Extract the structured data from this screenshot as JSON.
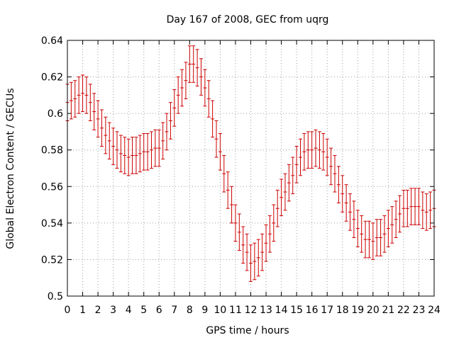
{
  "chart_data": {
    "type": "errorbar",
    "title": "Day 167 of 2008, GEC from uqrg",
    "xlabel": "GPS time / hours",
    "ylabel": "Global Electron Content / GECUs",
    "xlim": [
      0,
      24
    ],
    "ylim": [
      0.5,
      0.64
    ],
    "xticks": [
      "0",
      "1",
      "2",
      "3",
      "4",
      "5",
      "6",
      "7",
      "8",
      "9",
      "10",
      "11",
      "12",
      "13",
      "14",
      "15",
      "16",
      "17",
      "18",
      "19",
      "20",
      "21",
      "22",
      "23",
      "24"
    ],
    "yticks": [
      "0.5",
      "0.52",
      "0.54",
      "0.56",
      "0.58",
      "0.6",
      "0.62",
      "0.64"
    ],
    "grid": true,
    "series": [
      {
        "name": "GEC",
        "color": "#cc0000",
        "x": [
          0,
          0.25,
          0.5,
          0.75,
          1,
          1.25,
          1.5,
          1.75,
          2,
          2.25,
          2.5,
          2.75,
          3,
          3.25,
          3.5,
          3.75,
          4,
          4.25,
          4.5,
          4.75,
          5,
          5.25,
          5.5,
          5.75,
          6,
          6.25,
          6.5,
          6.75,
          7,
          7.25,
          7.5,
          7.75,
          8,
          8.25,
          8.5,
          8.75,
          9,
          9.25,
          9.5,
          9.75,
          10,
          10.25,
          10.5,
          10.75,
          11,
          11.25,
          11.5,
          11.75,
          12,
          12.25,
          12.5,
          12.75,
          13,
          13.25,
          13.5,
          13.75,
          14,
          14.25,
          14.5,
          14.75,
          15,
          15.25,
          15.5,
          15.75,
          16,
          16.25,
          16.5,
          16.75,
          17,
          17.25,
          17.5,
          17.75,
          18,
          18.25,
          18.5,
          18.75,
          19,
          19.25,
          19.5,
          19.75,
          20,
          20.25,
          20.5,
          20.75,
          21,
          21.25,
          21.5,
          21.75,
          22,
          22.25,
          22.5,
          22.75,
          23,
          23.25,
          23.5,
          23.75,
          24
        ],
        "y": [
          0.606,
          0.607,
          0.608,
          0.61,
          0.611,
          0.61,
          0.606,
          0.601,
          0.597,
          0.592,
          0.588,
          0.585,
          0.582,
          0.58,
          0.578,
          0.577,
          0.576,
          0.577,
          0.577,
          0.578,
          0.579,
          0.579,
          0.58,
          0.581,
          0.581,
          0.585,
          0.59,
          0.596,
          0.603,
          0.61,
          0.614,
          0.618,
          0.627,
          0.627,
          0.625,
          0.62,
          0.614,
          0.608,
          0.597,
          0.586,
          0.579,
          0.567,
          0.558,
          0.55,
          0.54,
          0.535,
          0.528,
          0.524,
          0.518,
          0.519,
          0.521,
          0.524,
          0.529,
          0.534,
          0.54,
          0.548,
          0.554,
          0.557,
          0.562,
          0.566,
          0.572,
          0.576,
          0.579,
          0.58,
          0.58,
          0.581,
          0.58,
          0.579,
          0.576,
          0.571,
          0.567,
          0.561,
          0.556,
          0.551,
          0.546,
          0.542,
          0.537,
          0.534,
          0.531,
          0.531,
          0.53,
          0.532,
          0.532,
          0.534,
          0.537,
          0.539,
          0.542,
          0.545,
          0.548,
          0.548,
          0.549,
          0.549,
          0.549,
          0.547,
          0.546,
          0.547,
          0.548
        ],
        "error": [
          0.01,
          0.01,
          0.01,
          0.01,
          0.01,
          0.01,
          0.01,
          0.01,
          0.01,
          0.01,
          0.01,
          0.01,
          0.01,
          0.01,
          0.01,
          0.01,
          0.01,
          0.01,
          0.01,
          0.01,
          0.01,
          0.01,
          0.01,
          0.01,
          0.01,
          0.01,
          0.01,
          0.01,
          0.01,
          0.01,
          0.01,
          0.01,
          0.01,
          0.01,
          0.01,
          0.01,
          0.01,
          0.01,
          0.01,
          0.01,
          0.01,
          0.01,
          0.01,
          0.01,
          0.01,
          0.01,
          0.01,
          0.01,
          0.01,
          0.01,
          0.01,
          0.01,
          0.01,
          0.01,
          0.01,
          0.01,
          0.01,
          0.01,
          0.01,
          0.01,
          0.01,
          0.01,
          0.01,
          0.01,
          0.01,
          0.01,
          0.01,
          0.01,
          0.01,
          0.01,
          0.01,
          0.01,
          0.01,
          0.01,
          0.01,
          0.01,
          0.01,
          0.01,
          0.01,
          0.01,
          0.01,
          0.01,
          0.01,
          0.01,
          0.01,
          0.01,
          0.01,
          0.01,
          0.01,
          0.01,
          0.01,
          0.01,
          0.01,
          0.01,
          0.01,
          0.01,
          0.01
        ]
      }
    ]
  }
}
